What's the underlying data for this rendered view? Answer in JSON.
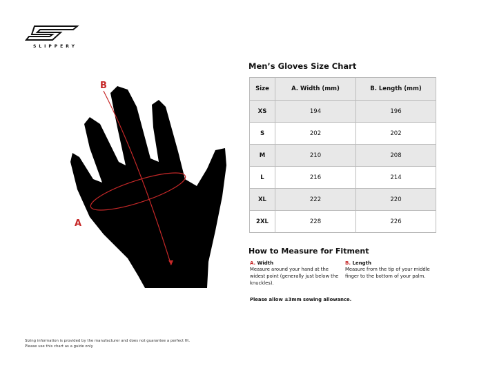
{
  "brand": {
    "name": "SLIPPERY"
  },
  "title": "Men’s Gloves Size Chart",
  "table": {
    "headers": [
      "Size",
      "A. Width (mm)",
      "B. Length (mm)"
    ],
    "rows": [
      [
        "XS",
        "194",
        "196"
      ],
      [
        "S",
        "202",
        "202"
      ],
      [
        "M",
        "210",
        "208"
      ],
      [
        "L",
        "216",
        "214"
      ],
      [
        "XL",
        "222",
        "220"
      ],
      [
        "2XL",
        "228",
        "226"
      ]
    ]
  },
  "diagram": {
    "label_a": "A",
    "label_b": "B",
    "accent": "#c62828"
  },
  "howto": {
    "title": "How to Measure for Fitment",
    "width": {
      "prefix": "A.",
      "label": "Width",
      "desc": "Measure around your hand at the widest point (generally just below the knuckles)."
    },
    "length": {
      "prefix": "B.",
      "label": "Length",
      "desc": "Measure from the tip of your middle finger to the bottom of your palm."
    },
    "note": "Please allow ±3mm sewing allowance."
  },
  "footer": {
    "line1": "Sizing information is provided by the manufacturer and does not guarantee a perfect fit.",
    "line2": "Please use this chart as a guide only"
  }
}
